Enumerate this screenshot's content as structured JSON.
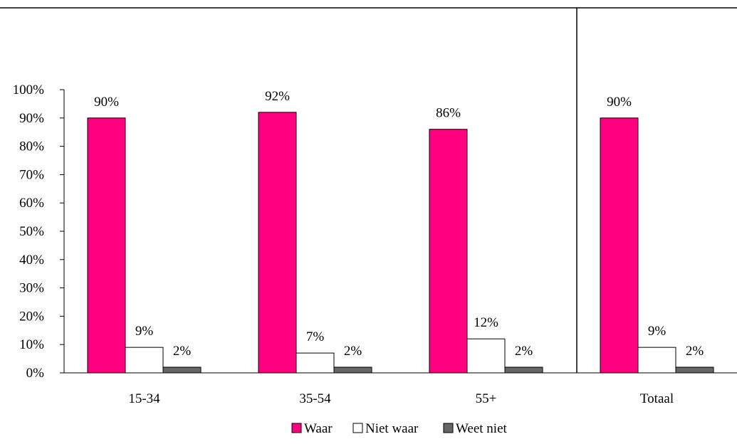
{
  "chart_data": {
    "type": "bar",
    "categories": [
      "15-34",
      "35-54",
      "55+",
      "Totaal"
    ],
    "series": [
      {
        "name": "Waar",
        "values": [
          90,
          92,
          86,
          90
        ],
        "labels": [
          "90%",
          "92%",
          "86%",
          "90%"
        ],
        "color": "#ff0080"
      },
      {
        "name": "Niet waar",
        "values": [
          9,
          7,
          12,
          9
        ],
        "labels": [
          "9%",
          "7%",
          "12%",
          "9%"
        ],
        "color": "#ffffff"
      },
      {
        "name": "Weet niet",
        "values": [
          2,
          2,
          2,
          2
        ],
        "labels": [
          "2%",
          "2%",
          "2%",
          "2%"
        ],
        "color": "#666666"
      }
    ],
    "ylim": [
      0,
      100
    ],
    "yticks": [
      "0%",
      "10%",
      "20%",
      "30%",
      "40%",
      "50%",
      "60%",
      "70%",
      "80%",
      "90%",
      "100%"
    ],
    "grid": false,
    "legend_position": "bottom-center",
    "separator_before_category": "Totaal"
  }
}
